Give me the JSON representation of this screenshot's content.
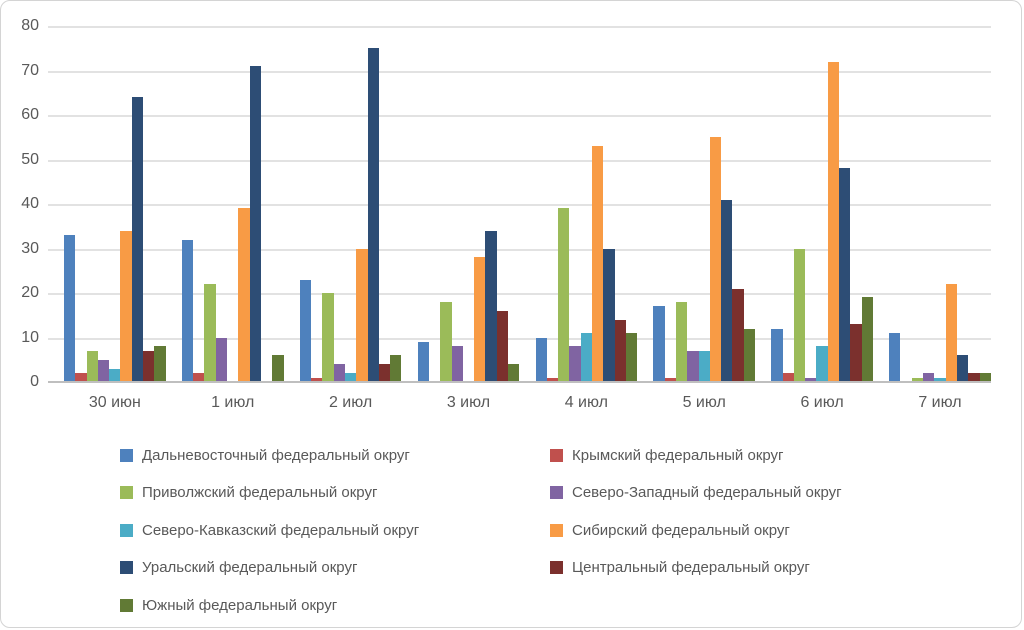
{
  "chart_data": {
    "type": "bar",
    "title": "",
    "xlabel": "",
    "ylabel": "",
    "ylim": [
      0,
      80
    ],
    "ytick_step": 10,
    "grid": true,
    "legend_position": "bottom",
    "categories": [
      "30 июн",
      "1 июл",
      "2 июл",
      "3 июл",
      "4 июл",
      "5 июл",
      "6 июл",
      "7 июл"
    ],
    "series": [
      {
        "name": "Дальневосточный федеральный округ",
        "color": "#4e81bd",
        "values": [
          33,
          32,
          23,
          9,
          10,
          17,
          12,
          11
        ]
      },
      {
        "name": "Крымский федеральный округ",
        "color": "#c0504d",
        "values": [
          2,
          2,
          1,
          0,
          1,
          1,
          2,
          0
        ]
      },
      {
        "name": "Приволжский федеральный округ",
        "color": "#9bbb59",
        "values": [
          7,
          22,
          20,
          18,
          39,
          18,
          30,
          1
        ]
      },
      {
        "name": "Северо-Западный федеральный округ",
        "color": "#8064a2",
        "values": [
          5,
          10,
          4,
          8,
          8,
          7,
          1,
          2
        ]
      },
      {
        "name": "Северо-Кавказский федеральный округ",
        "color": "#4bacc6",
        "values": [
          3,
          0,
          2,
          0,
          11,
          7,
          8,
          1
        ]
      },
      {
        "name": "Сибирский федеральный округ",
        "color": "#f89b45",
        "values": [
          34,
          39,
          30,
          28,
          53,
          55,
          72,
          22
        ]
      },
      {
        "name": "Уральский федеральный округ",
        "color": "#2d4d75",
        "values": [
          64,
          71,
          75,
          34,
          30,
          41,
          48,
          6
        ]
      },
      {
        "name": "Центральный федеральный округ",
        "color": "#7b302d",
        "values": [
          7,
          0,
          4,
          16,
          14,
          21,
          13,
          2
        ]
      },
      {
        "name": "Южный федеральный округ",
        "color": "#617a35",
        "values": [
          8,
          6,
          6,
          4,
          11,
          12,
          19,
          2
        ]
      }
    ],
    "colors": {
      "gridline": "#e2e2e2",
      "axis_line": "#bfbfbf",
      "tick_text": "#595959",
      "background": "#ffffff",
      "frame_border": "#d4d4d4"
    }
  }
}
